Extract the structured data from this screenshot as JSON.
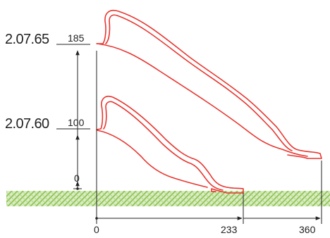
{
  "products": [
    {
      "code": "2.07.65",
      "height_label": "185"
    },
    {
      "code": "2.07.60",
      "height_label": "100"
    }
  ],
  "vertical_axis": {
    "zero_label": "0"
  },
  "horizontal_axis": {
    "labels": [
      "0",
      "233",
      "360"
    ]
  },
  "colors": {
    "slide": "#e8352f",
    "ground": "#8ac14a",
    "ground_background": "#d9ecc3",
    "ink": "#222222"
  }
}
